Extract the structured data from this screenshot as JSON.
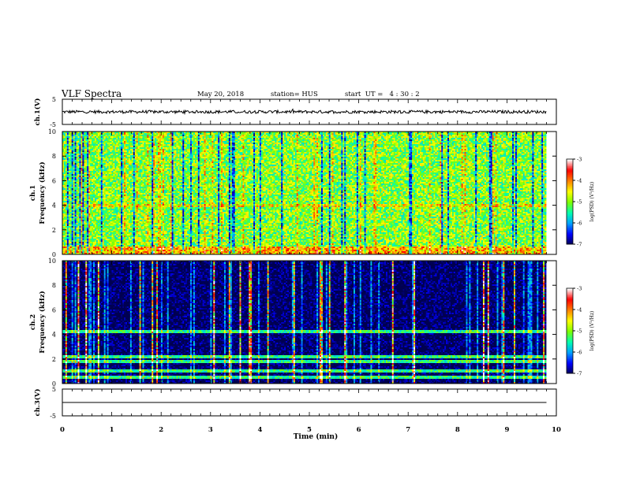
{
  "header": {
    "title": "VLF Spectra",
    "date": "May 20, 2018",
    "station": "station= HUS",
    "start": "start  UT =   4 : 30 : 2"
  },
  "chart_data": [
    {
      "type": "line",
      "panel": "ch1-waveform",
      "ylabel": "ch.1(V)",
      "ylim": [
        -5,
        5
      ],
      "yticks": [
        "5",
        "-5"
      ],
      "baseline": 0.0,
      "noise_amplitude": 0.6,
      "line_color": "#000000"
    },
    {
      "type": "heatmap",
      "panel": "ch1-spectrogram",
      "ylabel_channel": "ch.1",
      "ylabel": "Frequency (kHz)",
      "ylim": [
        0,
        10
      ],
      "yticks": [
        "0",
        "2",
        "4",
        "6",
        "8",
        "10"
      ],
      "background_level": -5.0,
      "colorbar_label": "log(PSD) (V²/Hz)",
      "colorbar_ticks": [
        "-3",
        "-4",
        "-5",
        "-6",
        "-7"
      ],
      "colorbar_range": [
        -7,
        -3
      ]
    },
    {
      "type": "heatmap",
      "panel": "ch2-spectrogram",
      "ylabel_channel": "ch.2",
      "ylabel": "Frequency (kHz)",
      "ylim": [
        0,
        10
      ],
      "yticks": [
        "0",
        "2",
        "4",
        "6",
        "8",
        "10"
      ],
      "background_level": -7.0,
      "bands_khz": [
        0.5,
        1.0,
        1.8,
        2.2,
        4.2
      ],
      "colorbar_label": "log(PSD) (V²/Hz)",
      "colorbar_ticks": [
        "-3",
        "-4",
        "-5",
        "-6",
        "-7"
      ],
      "colorbar_range": [
        -7,
        -3
      ]
    },
    {
      "type": "line",
      "panel": "ch3-waveform",
      "ylabel": "ch.3(V)",
      "ylim": [
        -5,
        5
      ],
      "yticks": [
        "5",
        "-5"
      ],
      "baseline": 0.0,
      "noise_amplitude": 0.0,
      "line_color": "#000000"
    }
  ],
  "xaxis": {
    "xlabel": "Time (min)",
    "xlim": [
      0,
      10
    ],
    "data_end_min": 9.8,
    "xticks": [
      "0",
      "1",
      "2",
      "3",
      "4",
      "5",
      "6",
      "7",
      "8",
      "9",
      "10"
    ]
  },
  "colors": {
    "frame": "#000000",
    "colormap": [
      "#000050",
      "#0000ff",
      "#00a0ff",
      "#00ffb0",
      "#7fff00",
      "#ffff00",
      "#ff8000",
      "#ff0000",
      "#ffffff"
    ]
  }
}
